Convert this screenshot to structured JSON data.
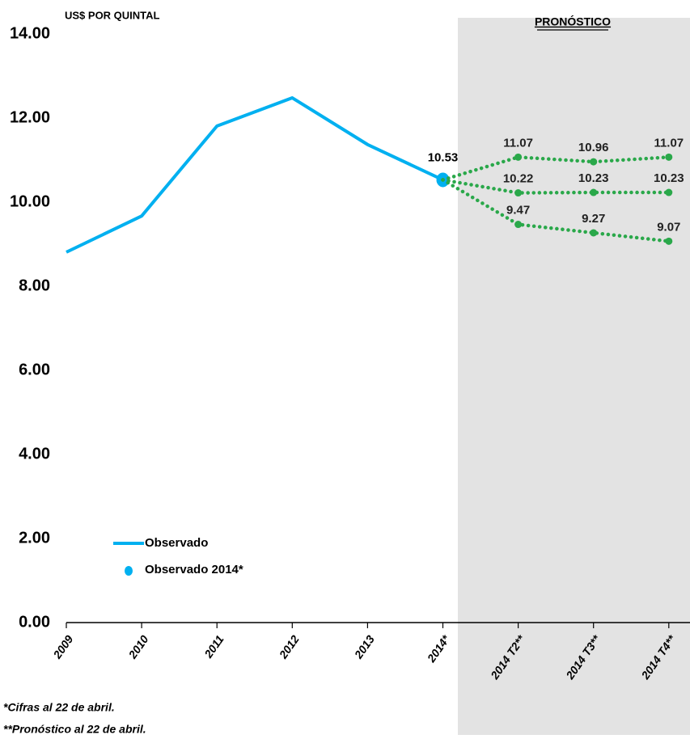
{
  "chart_data": {
    "type": "line",
    "title": "US$ POR QUINTAL",
    "annotations": [
      "PRONÓSTICO",
      "*Cifras al 22 de abril.",
      "**Pronóstico al 22 de abril."
    ],
    "categories": [
      "2009",
      "2010",
      "2011",
      "2012",
      "2013",
      "2014*",
      "2014 T2**",
      "2014 T3**",
      "2014 T4**"
    ],
    "series": [
      {
        "name": "Observado",
        "color": "#00b0f0",
        "style": "solid",
        "values": [
          8.81,
          9.67,
          11.81,
          12.48,
          11.37,
          10.53,
          null,
          null,
          null
        ]
      },
      {
        "name": "Observado 2014*",
        "color": "#00b0f0",
        "style": "point",
        "values": [
          null,
          null,
          null,
          null,
          null,
          10.53,
          null,
          null,
          null
        ],
        "value_labels": [
          null,
          null,
          null,
          null,
          null,
          "10.53",
          null,
          null,
          null
        ]
      },
      {
        "color": "#2aa84a",
        "style": "dotted",
        "values": [
          null,
          null,
          null,
          null,
          null,
          10.53,
          11.07,
          10.96,
          11.07
        ],
        "value_labels": [
          null,
          null,
          null,
          null,
          null,
          null,
          "11.07",
          "10.96",
          "11.07"
        ]
      },
      {
        "color": "#2aa84a",
        "style": "dotted",
        "values": [
          null,
          null,
          null,
          null,
          null,
          10.53,
          10.22,
          10.23,
          10.23
        ],
        "value_labels": [
          null,
          null,
          null,
          null,
          null,
          null,
          "10.22",
          "10.23",
          "10.23"
        ]
      },
      {
        "color": "#2aa84a",
        "style": "dotted",
        "values": [
          null,
          null,
          null,
          null,
          null,
          10.53,
          9.47,
          9.27,
          9.07
        ],
        "value_labels": [
          null,
          null,
          null,
          null,
          null,
          null,
          "9.47",
          "9.27",
          "9.07"
        ]
      }
    ],
    "ylim": [
      0,
      14
    ],
    "yticks": [
      {
        "value": 0,
        "label": "0.00"
      },
      {
        "value": 2,
        "label": "2.00"
      },
      {
        "value": 4,
        "label": "4.00"
      },
      {
        "value": 6,
        "label": "6.00"
      },
      {
        "value": 8,
        "label": "8.00"
      },
      {
        "value": 10,
        "label": "10.00"
      },
      {
        "value": 12,
        "label": "12.00"
      },
      {
        "value": 14,
        "label": "14.00"
      }
    ],
    "grid": false
  }
}
